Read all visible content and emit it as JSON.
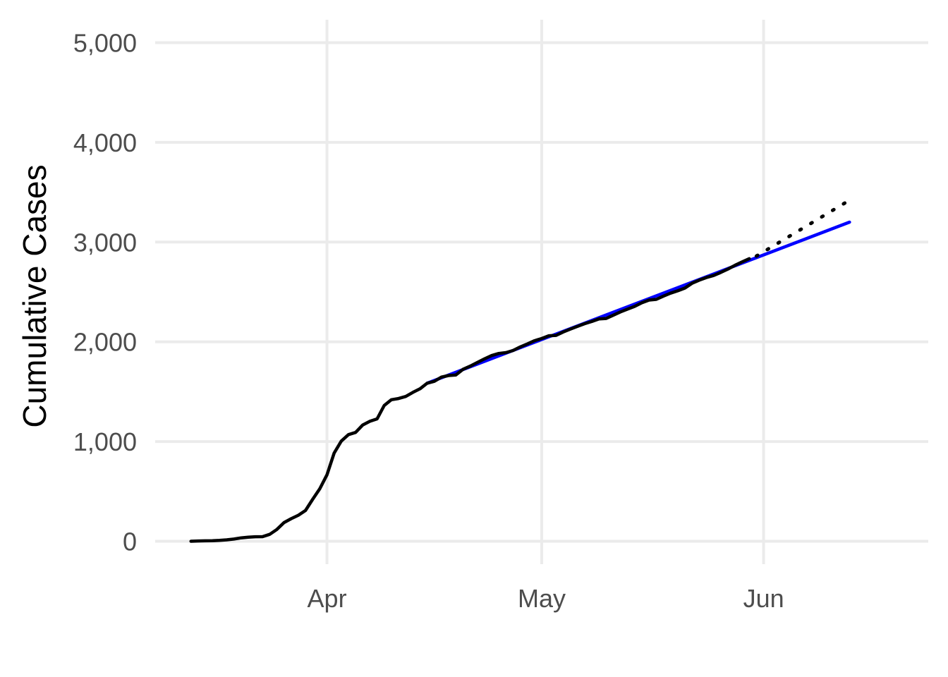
{
  "chart_data": {
    "type": "line",
    "title": "",
    "xlabel": "",
    "ylabel": "Cumulative Cases",
    "x_axis": {
      "type": "date",
      "range": [
        "2020-03-08",
        "2020-06-24"
      ],
      "ticks": [
        {
          "date": "2020-04-01",
          "label": "Apr"
        },
        {
          "date": "2020-05-01",
          "label": "May"
        },
        {
          "date": "2020-06-01",
          "label": "Jun"
        }
      ]
    },
    "y_axis": {
      "range": [
        -230,
        5230
      ],
      "ticks": [
        {
          "value": 0,
          "label": "0"
        },
        {
          "value": 1000,
          "label": "1,000"
        },
        {
          "value": 2000,
          "label": "2,000"
        },
        {
          "value": 3000,
          "label": "3,000"
        },
        {
          "value": 4000,
          "label": "4,000"
        },
        {
          "value": 5000,
          "label": "5,000"
        }
      ]
    },
    "grid": true,
    "legend": "none",
    "series": [
      {
        "style": "solid",
        "color": "#000000",
        "points": [
          [
            "2020-03-13",
            0
          ],
          [
            "2020-03-14",
            3
          ],
          [
            "2020-03-15",
            4
          ],
          [
            "2020-03-16",
            5
          ],
          [
            "2020-03-17",
            8
          ],
          [
            "2020-03-18",
            14
          ],
          [
            "2020-03-19",
            22
          ],
          [
            "2020-03-20",
            34
          ],
          [
            "2020-03-21",
            41
          ],
          [
            "2020-03-22",
            45
          ],
          [
            "2020-03-23",
            46
          ],
          [
            "2020-03-24",
            69
          ],
          [
            "2020-03-25",
            118
          ],
          [
            "2020-03-26",
            187
          ],
          [
            "2020-03-27",
            226
          ],
          [
            "2020-03-28",
            261
          ],
          [
            "2020-03-29",
            308
          ],
          [
            "2020-03-30",
            421
          ],
          [
            "2020-03-31",
            527
          ],
          [
            "2020-04-01",
            667
          ],
          [
            "2020-04-02",
            884
          ],
          [
            "2020-04-03",
            1005
          ],
          [
            "2020-04-04",
            1069
          ],
          [
            "2020-04-05",
            1091
          ],
          [
            "2020-04-06",
            1166
          ],
          [
            "2020-04-07",
            1203
          ],
          [
            "2020-04-08",
            1227
          ],
          [
            "2020-04-09",
            1361
          ],
          [
            "2020-04-10",
            1419
          ],
          [
            "2020-04-11",
            1431
          ],
          [
            "2020-04-12",
            1452
          ],
          [
            "2020-04-13",
            1493
          ],
          [
            "2020-04-14",
            1529
          ],
          [
            "2020-04-15",
            1585
          ],
          [
            "2020-04-16",
            1604
          ],
          [
            "2020-04-17",
            1646
          ],
          [
            "2020-04-18",
            1662
          ],
          [
            "2020-04-19",
            1667
          ],
          [
            "2020-04-20",
            1724
          ],
          [
            "2020-04-21",
            1756
          ],
          [
            "2020-04-22",
            1793
          ],
          [
            "2020-04-23",
            1829
          ],
          [
            "2020-04-24",
            1862
          ],
          [
            "2020-04-25",
            1883
          ],
          [
            "2020-04-26",
            1892
          ],
          [
            "2020-04-27",
            1913
          ],
          [
            "2020-04-28",
            1949
          ],
          [
            "2020-04-29",
            1979
          ],
          [
            "2020-04-30",
            2011
          ],
          [
            "2020-05-01",
            2033
          ],
          [
            "2020-05-02",
            2061
          ],
          [
            "2020-05-03",
            2064
          ],
          [
            "2020-05-04",
            2098
          ],
          [
            "2020-05-05",
            2127
          ],
          [
            "2020-05-06",
            2155
          ],
          [
            "2020-05-07",
            2182
          ],
          [
            "2020-05-08",
            2204
          ],
          [
            "2020-05-09",
            2230
          ],
          [
            "2020-05-10",
            2234
          ],
          [
            "2020-05-11",
            2267
          ],
          [
            "2020-05-12",
            2300
          ],
          [
            "2020-05-13",
            2328
          ],
          [
            "2020-05-14",
            2356
          ],
          [
            "2020-05-15",
            2392
          ],
          [
            "2020-05-16",
            2419
          ],
          [
            "2020-05-17",
            2426
          ],
          [
            "2020-05-18",
            2458
          ],
          [
            "2020-05-19",
            2488
          ],
          [
            "2020-05-20",
            2511
          ],
          [
            "2020-05-21",
            2539
          ],
          [
            "2020-05-22",
            2587
          ],
          [
            "2020-05-23",
            2618
          ],
          [
            "2020-05-24",
            2644
          ],
          [
            "2020-05-25",
            2665
          ],
          [
            "2020-05-26",
            2695
          ],
          [
            "2020-05-27",
            2729
          ],
          [
            "2020-05-28",
            2767
          ],
          [
            "2020-05-29",
            2801
          ],
          [
            "2020-05-30",
            2834
          ]
        ]
      },
      {
        "style": "solid",
        "color": "#0000ff",
        "points": [
          [
            "2020-04-15",
            1585
          ],
          [
            "2020-06-13",
            3200
          ]
        ]
      },
      {
        "style": "dotted",
        "color": "#000000",
        "points": [
          [
            "2020-05-31",
            2860
          ],
          [
            "2020-06-13",
            3420
          ]
        ]
      }
    ]
  }
}
